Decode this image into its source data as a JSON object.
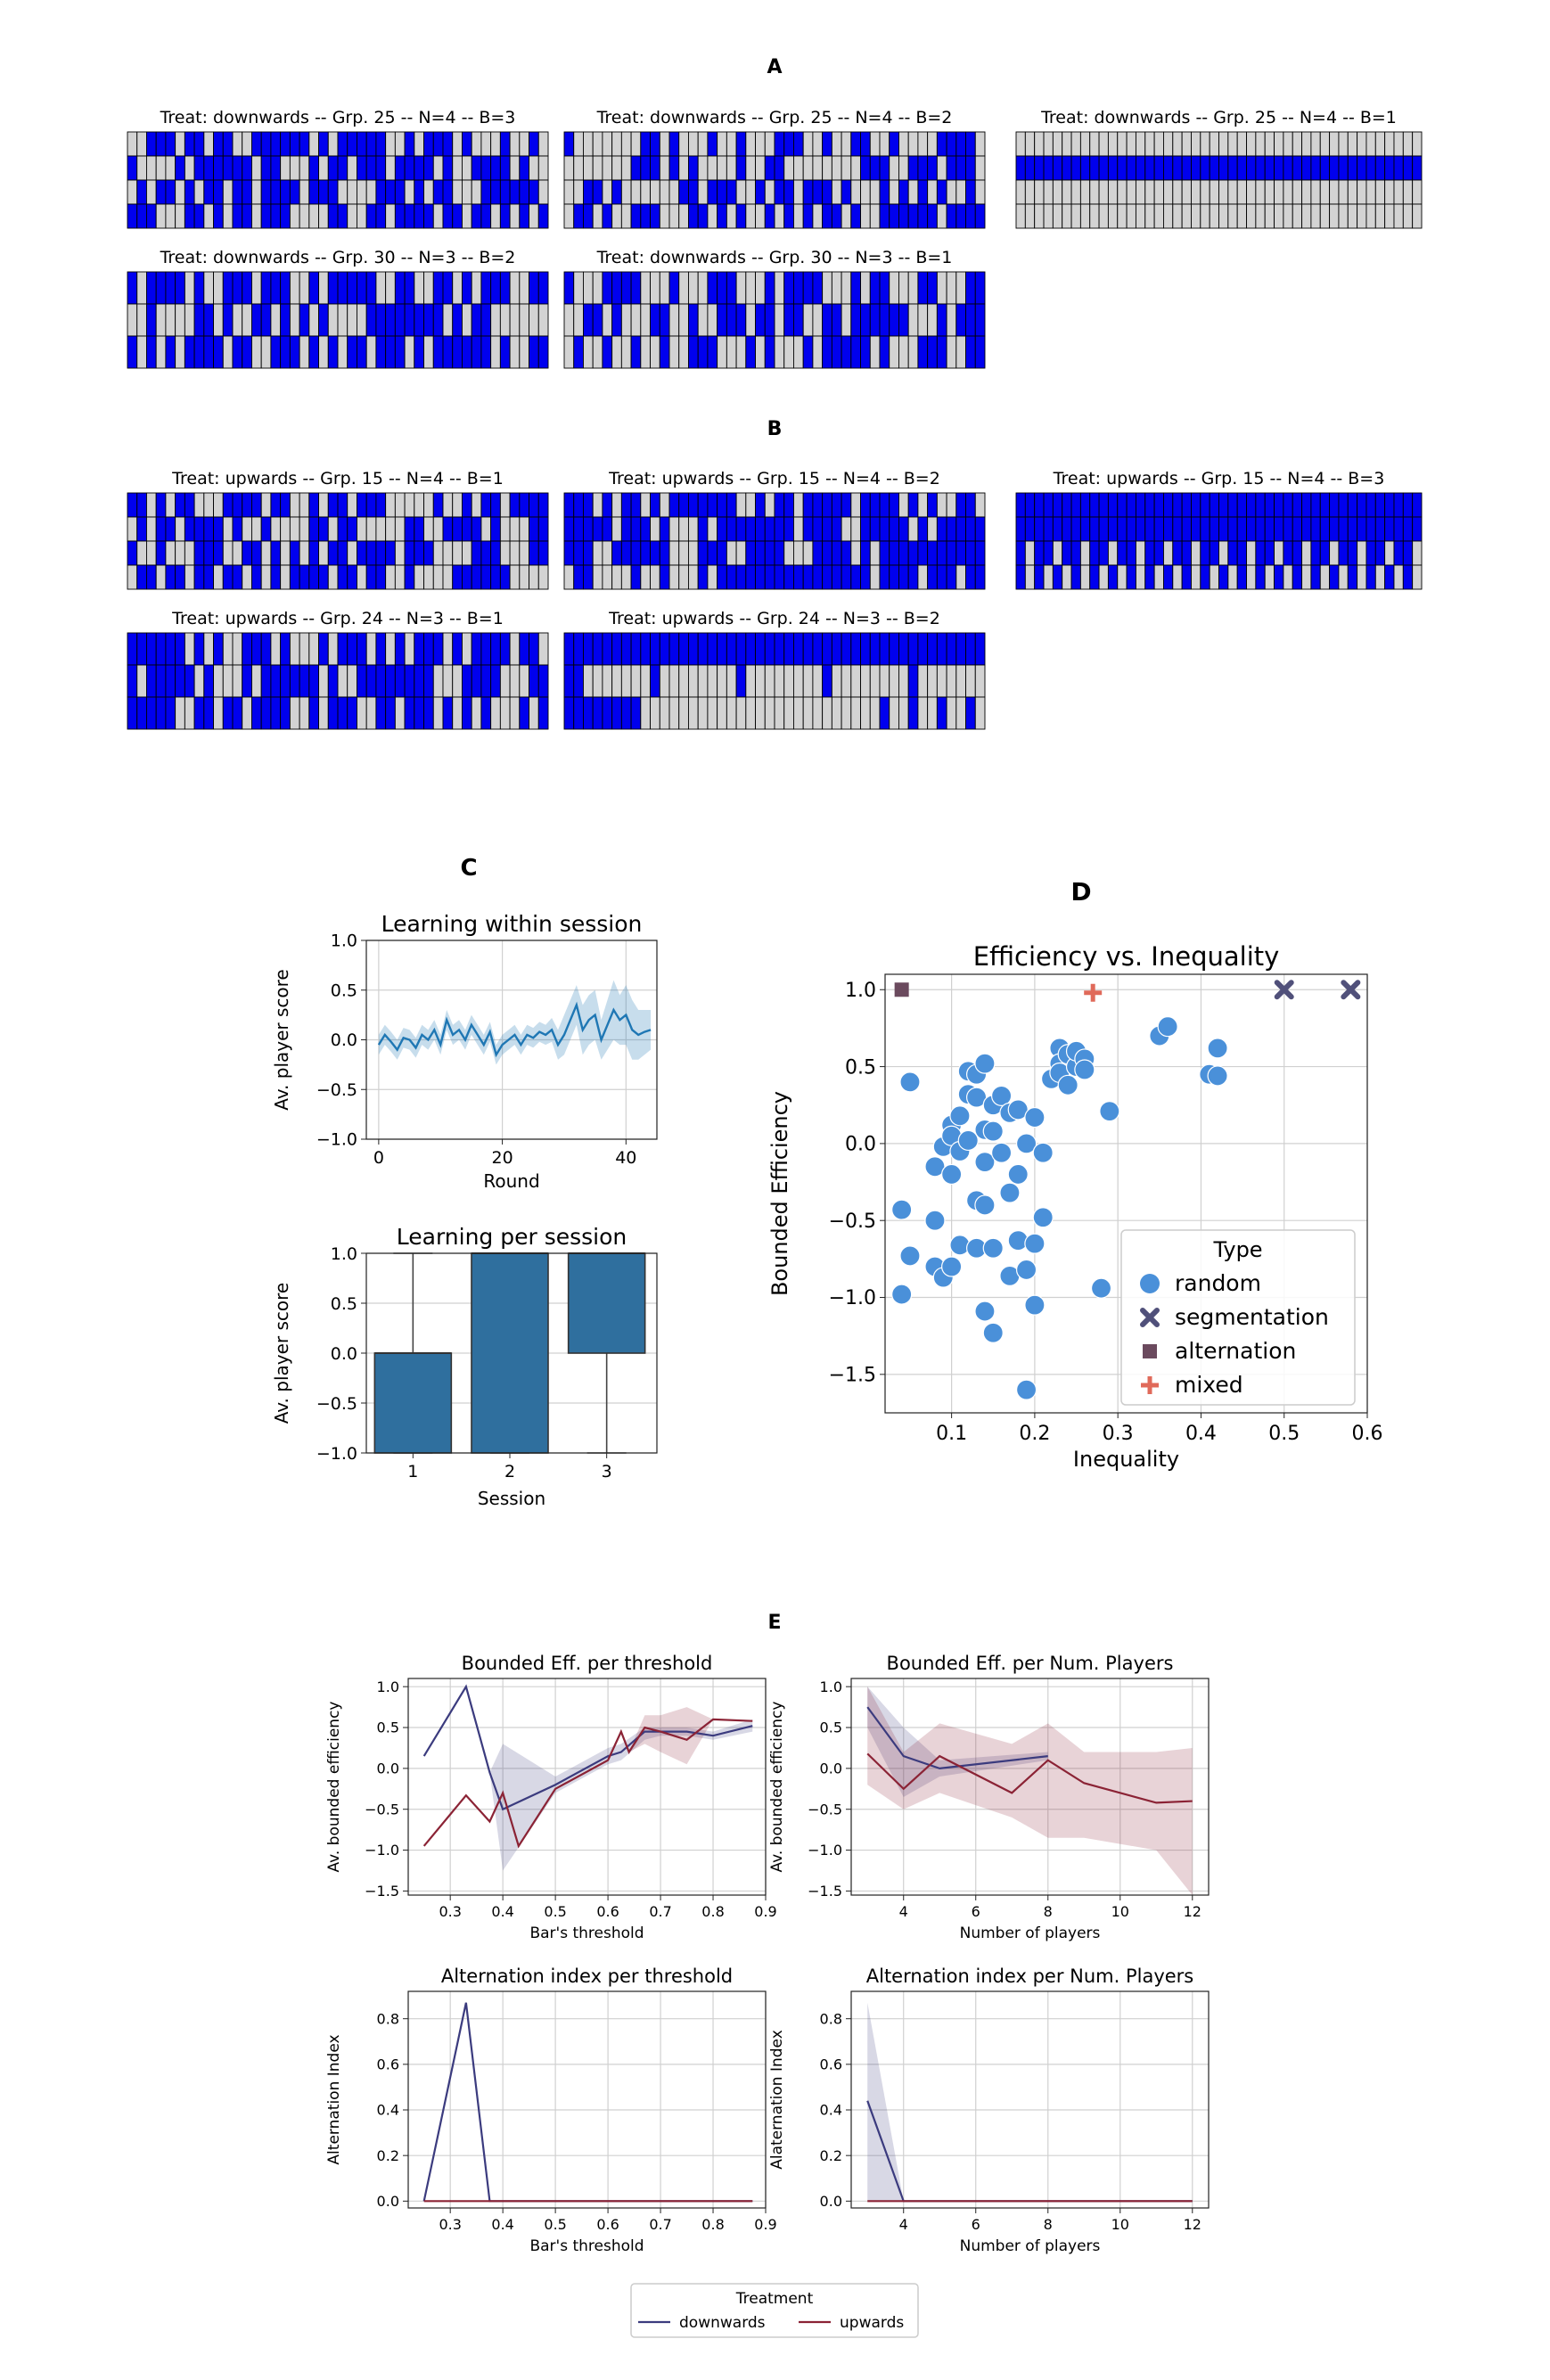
{
  "figure": {
    "panel_labels": {
      "A": "A",
      "B": "B",
      "C": "C",
      "D": "D",
      "E": "E"
    }
  },
  "panel_a": {
    "grids": [
      {
        "title": "Treat: downwards -- Grp. 25 -- N=4  -- B=3",
        "rows": 4,
        "cols": 44,
        "seed": 11,
        "density": 0.62
      },
      {
        "title": "Treat: downwards -- Grp. 25 -- N=4  -- B=2",
        "rows": 4,
        "cols": 44,
        "seed": 23,
        "density": 0.45
      },
      {
        "title": "Treat: downwards -- Grp. 25 -- N=4  -- B=1",
        "rows": 4,
        "cols": 44,
        "pattern": "row2"
      },
      {
        "title": "Treat: downwards -- Grp. 30 -- N=3  -- B=2",
        "rows": 3,
        "cols": 44,
        "seed": 31,
        "density": 0.6
      },
      {
        "title": "Treat: downwards -- Grp. 30 -- N=3  -- B=1",
        "rows": 3,
        "cols": 44,
        "seed": 47,
        "density": 0.45
      }
    ]
  },
  "panel_b": {
    "grids": [
      {
        "title": "Treat: upwards -- Grp. 15 -- N=4  -- B=1",
        "rows": 4,
        "cols": 44,
        "seed": 53,
        "density": 0.5
      },
      {
        "title": "Treat: upwards -- Grp. 15 -- N=4  -- B=2",
        "rows": 4,
        "cols": 44,
        "seed": 61,
        "density": 0.72
      },
      {
        "title": "Treat: upwards -- Grp. 15 -- N=4  -- B=3",
        "rows": 4,
        "cols": 44,
        "pattern": "mostly"
      },
      {
        "title": "Treat: upwards -- Grp. 24 -- N=3  -- B=1",
        "rows": 3,
        "cols": 44,
        "seed": 71,
        "density": 0.62
      },
      {
        "title": "Treat: upwards -- Grp. 24 -- N=3  -- B=2",
        "rows": 3,
        "cols": 44,
        "pattern": "rowfill"
      }
    ]
  },
  "chart_data": [
    {
      "type": "line",
      "title": "Learning within session",
      "xlabel": "Round",
      "ylabel": "Av. player score",
      "xlim": [
        -2,
        45
      ],
      "ylim": [
        -1.0,
        1.0
      ],
      "xticks": [
        0,
        20,
        40
      ],
      "yticks": [
        -1.0,
        -0.5,
        0.0,
        0.5,
        1.0
      ],
      "grid": true,
      "series": [
        {
          "x": [
            0,
            1,
            2,
            3,
            4,
            5,
            6,
            7,
            8,
            9,
            10,
            11,
            12,
            13,
            14,
            15,
            16,
            17,
            18,
            19,
            20,
            21,
            22,
            23,
            24,
            25,
            26,
            27,
            28,
            29,
            30,
            31,
            32,
            33,
            34,
            35,
            36,
            37,
            38,
            39,
            40,
            41,
            42,
            43,
            44
          ],
          "values": [
            -0.05,
            0.05,
            -0.02,
            -0.1,
            0.02,
            0.0,
            -0.08,
            0.05,
            0.0,
            0.1,
            -0.05,
            0.2,
            0.05,
            0.1,
            0.0,
            0.15,
            0.05,
            -0.05,
            0.08,
            -0.15,
            -0.05,
            0.0,
            0.05,
            -0.05,
            0.05,
            0.02,
            0.08,
            0.05,
            0.1,
            -0.05,
            0.05,
            0.2,
            0.35,
            0.1,
            0.2,
            0.25,
            0.0,
            0.15,
            0.3,
            0.2,
            0.25,
            0.1,
            0.05,
            0.08,
            0.1
          ],
          "lower": [
            -0.15,
            -0.05,
            -0.12,
            -0.2,
            -0.08,
            -0.1,
            -0.18,
            -0.05,
            -0.1,
            0.0,
            -0.15,
            0.1,
            -0.05,
            0.0,
            -0.1,
            0.05,
            -0.05,
            -0.15,
            -0.02,
            -0.25,
            -0.15,
            -0.1,
            -0.05,
            -0.15,
            -0.05,
            -0.08,
            -0.02,
            -0.05,
            -0.02,
            -0.2,
            -0.15,
            0.0,
            0.15,
            -0.15,
            -0.05,
            0.0,
            -0.2,
            -0.1,
            0.0,
            -0.05,
            -0.05,
            -0.2,
            -0.2,
            -0.15,
            -0.1
          ],
          "upper": [
            0.05,
            0.15,
            0.08,
            0.0,
            0.12,
            0.1,
            0.02,
            0.15,
            0.1,
            0.2,
            0.05,
            0.3,
            0.15,
            0.2,
            0.1,
            0.25,
            0.15,
            0.05,
            0.18,
            -0.05,
            0.05,
            0.1,
            0.15,
            0.05,
            0.15,
            0.12,
            0.18,
            0.15,
            0.22,
            0.1,
            0.25,
            0.4,
            0.55,
            0.35,
            0.45,
            0.5,
            0.2,
            0.4,
            0.6,
            0.45,
            0.55,
            0.4,
            0.3,
            0.3,
            0.3
          ]
        }
      ]
    },
    {
      "type": "bar",
      "title": "Learning per session",
      "xlabel": "Session",
      "ylabel": "Av. player score",
      "categories": [
        "1",
        "2",
        "3"
      ],
      "ylim": [
        -1.0,
        1.0
      ],
      "yticks": [
        -1.0,
        -0.5,
        0.0,
        0.5,
        1.0
      ],
      "grid": true,
      "boxes": [
        {
          "q1": -1.0,
          "q3": 0.0,
          "median": 0.0,
          "whisker_low": -1.0,
          "whisker_high": 1.0
        },
        {
          "q1": -1.0,
          "q3": 1.0,
          "median": 1.0,
          "whisker_low": -1.0,
          "whisker_high": 1.0
        },
        {
          "q1": 0.0,
          "q3": 1.0,
          "median": 1.0,
          "whisker_low": -1.0,
          "whisker_high": 1.0
        }
      ]
    },
    {
      "type": "scatter",
      "title": "Efficiency vs. Inequality",
      "xlabel": "Inequality",
      "ylabel": "Bounded Efficiency",
      "xlim": [
        0.02,
        0.6
      ],
      "ylim": [
        -1.75,
        1.1
      ],
      "xticks": [
        0.1,
        0.2,
        0.3,
        0.4,
        0.5,
        0.6
      ],
      "yticks": [
        -1.5,
        -1.0,
        -0.5,
        0.0,
        0.5,
        1.0
      ],
      "grid": true,
      "legend": {
        "title": "Type",
        "placement": "lower-right"
      },
      "series": [
        {
          "name": "random",
          "marker": "circle",
          "color": "#4a90d9",
          "points": [
            [
              0.04,
              -0.43
            ],
            [
              0.04,
              -0.98
            ],
            [
              0.05,
              0.4
            ],
            [
              0.05,
              -0.73
            ],
            [
              0.08,
              -0.8
            ],
            [
              0.08,
              -0.5
            ],
            [
              0.08,
              -0.15
            ],
            [
              0.09,
              -0.02
            ],
            [
              0.09,
              -0.87
            ],
            [
              0.1,
              0.12
            ],
            [
              0.1,
              0.05
            ],
            [
              0.1,
              -0.2
            ],
            [
              0.1,
              -0.8
            ],
            [
              0.11,
              -0.05
            ],
            [
              0.11,
              -0.66
            ],
            [
              0.11,
              0.18
            ],
            [
              0.12,
              0.47
            ],
            [
              0.12,
              0.32
            ],
            [
              0.12,
              0.02
            ],
            [
              0.13,
              0.45
            ],
            [
              0.13,
              0.3
            ],
            [
              0.13,
              -0.37
            ],
            [
              0.13,
              -0.68
            ],
            [
              0.14,
              0.52
            ],
            [
              0.14,
              0.09
            ],
            [
              0.14,
              -0.12
            ],
            [
              0.14,
              -0.4
            ],
            [
              0.14,
              -1.09
            ],
            [
              0.15,
              -0.68
            ],
            [
              0.15,
              0.25
            ],
            [
              0.15,
              0.08
            ],
            [
              0.15,
              -1.23
            ],
            [
              0.16,
              -0.06
            ],
            [
              0.16,
              0.31
            ],
            [
              0.17,
              0.2
            ],
            [
              0.17,
              -0.32
            ],
            [
              0.17,
              -0.86
            ],
            [
              0.18,
              0.22
            ],
            [
              0.18,
              -0.2
            ],
            [
              0.18,
              -0.63
            ],
            [
              0.19,
              -1.6
            ],
            [
              0.19,
              -0.82
            ],
            [
              0.19,
              0.0
            ],
            [
              0.2,
              0.17
            ],
            [
              0.2,
              -0.65
            ],
            [
              0.2,
              -1.05
            ],
            [
              0.21,
              -0.06
            ],
            [
              0.21,
              -0.48
            ],
            [
              0.22,
              0.42
            ],
            [
              0.23,
              0.62
            ],
            [
              0.23,
              0.52
            ],
            [
              0.23,
              0.46
            ],
            [
              0.24,
              0.58
            ],
            [
              0.24,
              0.38
            ],
            [
              0.25,
              0.5
            ],
            [
              0.25,
              0.6
            ],
            [
              0.26,
              0.55
            ],
            [
              0.26,
              0.48
            ],
            [
              0.28,
              -0.94
            ],
            [
              0.29,
              0.21
            ],
            [
              0.35,
              0.7
            ],
            [
              0.36,
              0.76
            ],
            [
              0.41,
              0.45
            ],
            [
              0.42,
              0.62
            ],
            [
              0.42,
              0.44
            ]
          ]
        },
        {
          "name": "segmentation",
          "marker": "x",
          "color": "#50507a",
          "points": [
            [
              0.5,
              1.0
            ],
            [
              0.58,
              1.0
            ]
          ]
        },
        {
          "name": "alternation",
          "marker": "square",
          "color": "#6b4a5e",
          "points": [
            [
              0.04,
              1.0
            ]
          ]
        },
        {
          "name": "mixed",
          "marker": "plus",
          "color": "#e06a5a",
          "points": [
            [
              0.27,
              0.98
            ]
          ]
        }
      ]
    },
    {
      "type": "line",
      "title": "Bounded Eff. per threshold",
      "xlabel": "Bar's threshold",
      "ylabel": "Av. bounded efficiency",
      "xlim": [
        0.22,
        0.9
      ],
      "ylim": [
        -1.55,
        1.1
      ],
      "xticks": [
        0.3,
        0.4,
        0.5,
        0.6,
        0.7,
        0.8,
        0.9
      ],
      "yticks": [
        -1.5,
        -1.0,
        -0.5,
        0.0,
        0.5,
        1.0
      ],
      "grid": true,
      "series": [
        {
          "name": "downwards",
          "color": "#3b3b7e",
          "x": [
            0.25,
            0.33,
            0.375,
            0.4,
            0.5,
            0.6,
            0.625,
            0.67,
            0.7,
            0.75,
            0.8,
            0.875
          ],
          "values": [
            0.15,
            1.0,
            -0.05,
            -0.5,
            -0.2,
            0.15,
            0.2,
            0.45,
            0.45,
            0.45,
            0.4,
            0.52
          ],
          "lower": [
            0.15,
            1.0,
            -0.05,
            -1.25,
            -0.3,
            0.05,
            0.1,
            0.35,
            0.4,
            0.4,
            0.35,
            0.45
          ],
          "upper": [
            0.15,
            1.0,
            -0.05,
            0.3,
            -0.1,
            0.25,
            0.3,
            0.5,
            0.5,
            0.5,
            0.45,
            0.6
          ]
        },
        {
          "name": "upwards",
          "color": "#8b2335",
          "x": [
            0.25,
            0.33,
            0.375,
            0.4,
            0.43,
            0.5,
            0.6,
            0.625,
            0.64,
            0.67,
            0.7,
            0.75,
            0.8,
            0.875
          ],
          "values": [
            -0.95,
            -0.33,
            -0.65,
            -0.3,
            -0.95,
            -0.25,
            0.1,
            0.45,
            0.2,
            0.5,
            0.45,
            0.35,
            0.6,
            0.58
          ],
          "lower": [
            -0.95,
            -0.33,
            -0.65,
            -0.3,
            -0.95,
            -0.25,
            0.1,
            0.45,
            0.2,
            0.3,
            0.2,
            0.05,
            0.6,
            0.58
          ],
          "upper": [
            -0.95,
            -0.33,
            -0.65,
            -0.3,
            -0.95,
            -0.25,
            0.1,
            0.45,
            0.2,
            0.65,
            0.65,
            0.75,
            0.6,
            0.58
          ]
        }
      ]
    },
    {
      "type": "line",
      "title": "Bounded Eff. per Num. Players",
      "xlabel": "Number of players",
      "ylabel": "Av. bounded efficiency",
      "xlim": [
        2.55,
        12.45
      ],
      "ylim": [
        -1.55,
        1.1
      ],
      "xticks": [
        4,
        6,
        8,
        10,
        12
      ],
      "yticks": [
        -1.5,
        -1.0,
        -0.5,
        0.0,
        0.5,
        1.0
      ],
      "grid": true,
      "series": [
        {
          "name": "downwards",
          "color": "#3b3b7e",
          "x": [
            3,
            4,
            5,
            8
          ],
          "values": [
            0.75,
            0.15,
            0.0,
            0.15
          ],
          "lower": [
            0.5,
            -0.35,
            -0.1,
            0.1
          ],
          "upper": [
            1.0,
            0.5,
            0.1,
            0.2
          ]
        },
        {
          "name": "upwards",
          "color": "#8b2335",
          "x": [
            3,
            4,
            5,
            7,
            8,
            9,
            11,
            12
          ],
          "values": [
            0.18,
            -0.25,
            0.15,
            -0.3,
            0.1,
            -0.18,
            -0.42,
            -0.4
          ],
          "lower": [
            -0.2,
            -0.5,
            -0.3,
            -0.6,
            -0.85,
            -0.85,
            -1.0,
            -1.55
          ],
          "upper": [
            1.0,
            0.2,
            0.55,
            0.3,
            0.55,
            0.2,
            0.2,
            0.25
          ]
        }
      ]
    },
    {
      "type": "line",
      "title": "Alternation index per threshold",
      "xlabel": "Bar's threshold",
      "ylabel": "Alternation Index",
      "xlim": [
        0.22,
        0.9
      ],
      "ylim": [
        -0.03,
        0.92
      ],
      "xticks": [
        0.3,
        0.4,
        0.5,
        0.6,
        0.7,
        0.8,
        0.9
      ],
      "yticks": [
        0.0,
        0.2,
        0.4,
        0.6,
        0.8
      ],
      "grid": true,
      "series": [
        {
          "name": "downwards",
          "color": "#3b3b7e",
          "x": [
            0.25,
            0.33,
            0.375,
            0.4,
            0.875
          ],
          "values": [
            0.0,
            0.87,
            0.0,
            0.0,
            0.0
          ]
        },
        {
          "name": "upwards",
          "color": "#8b2335",
          "x": [
            0.25,
            0.875
          ],
          "values": [
            0.0,
            0.0
          ]
        }
      ]
    },
    {
      "type": "line",
      "title": "Alternation index per Num. Players",
      "xlabel": "Number of players",
      "ylabel": "Alaternation Index",
      "xlim": [
        2.55,
        12.45
      ],
      "ylim": [
        -0.03,
        0.92
      ],
      "xticks": [
        4,
        6,
        8,
        10,
        12
      ],
      "yticks": [
        0.0,
        0.2,
        0.4,
        0.6,
        0.8
      ],
      "grid": true,
      "series": [
        {
          "name": "downwards",
          "color": "#3b3b7e",
          "x": [
            3,
            4,
            12
          ],
          "values": [
            0.44,
            0.0,
            0.0
          ],
          "lower": [
            0.0,
            0.0,
            0.0
          ],
          "upper": [
            0.87,
            0.0,
            0.0
          ]
        },
        {
          "name": "upwards",
          "color": "#8b2335",
          "x": [
            3,
            12
          ],
          "values": [
            0.0,
            0.0
          ]
        }
      ]
    }
  ],
  "legend_e": {
    "title": "Treatment",
    "items": [
      {
        "label": "downwards",
        "color": "#3b3b7e"
      },
      {
        "label": "upwards",
        "color": "#8b2335"
      }
    ]
  },
  "colors": {
    "cell_on": "#0000ee",
    "cell_off": "#d3d3d3",
    "grid_line": "#000000"
  }
}
